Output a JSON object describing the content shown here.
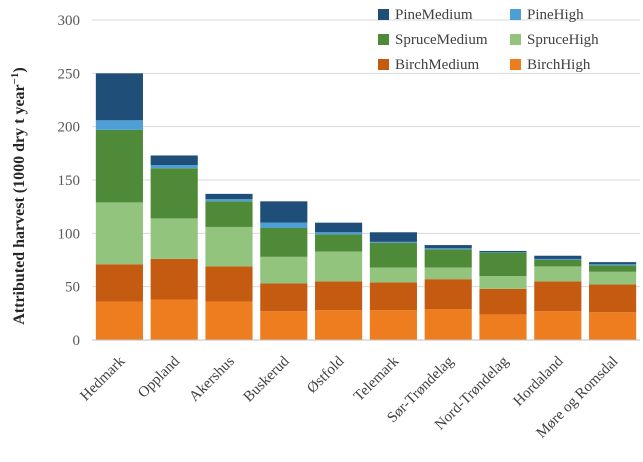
{
  "chart_data": {
    "type": "bar",
    "stacked": true,
    "ylabel": "Attributed harvest (1000 dry t year",
    "ylabel_sup": "−1",
    "ylabel_close": ")",
    "ylim": [
      0,
      300
    ],
    "yticks": [
      0,
      50,
      100,
      150,
      200,
      250,
      300
    ],
    "categories": [
      "Hedmark",
      "Oppland",
      "Akershus",
      "Buskerud",
      "Østfold",
      "Telemark",
      "Sør-Trøndelag",
      "Nord-Trøndelag",
      "Hordaland",
      "Møre og Romsdal"
    ],
    "series": [
      {
        "name": "BirchHigh",
        "color": "#ed7d1f",
        "values": [
          36,
          38,
          36,
          27,
          28,
          28,
          29,
          24,
          27,
          26
        ]
      },
      {
        "name": "BirchMedium",
        "color": "#c55a11",
        "values": [
          35,
          38,
          33,
          26,
          27,
          26,
          28,
          24,
          28,
          26
        ]
      },
      {
        "name": "SpruceHigh",
        "color": "#92c47d",
        "values": [
          58,
          38,
          37,
          25,
          28,
          14,
          11,
          12,
          14,
          12
        ]
      },
      {
        "name": "SpruceMedium",
        "color": "#4e8a37",
        "values": [
          68,
          47,
          24,
          27,
          16,
          23,
          17,
          22,
          6,
          6
        ]
      },
      {
        "name": "PineHigh",
        "color": "#4e9fd6",
        "values": [
          9,
          3,
          2,
          5,
          2,
          1,
          1,
          0.5,
          1,
          1
        ]
      },
      {
        "name": "PineMedium",
        "color": "#1f4e79",
        "values": [
          44,
          9,
          5,
          20,
          9,
          9,
          3,
          1,
          3,
          2
        ]
      }
    ],
    "legend": {
      "placement": "top-right",
      "order": [
        "PineMedium",
        "PineHigh",
        "SpruceMedium",
        "SpruceHigh",
        "BirchMedium",
        "BirchHigh"
      ]
    },
    "grid": true
  }
}
